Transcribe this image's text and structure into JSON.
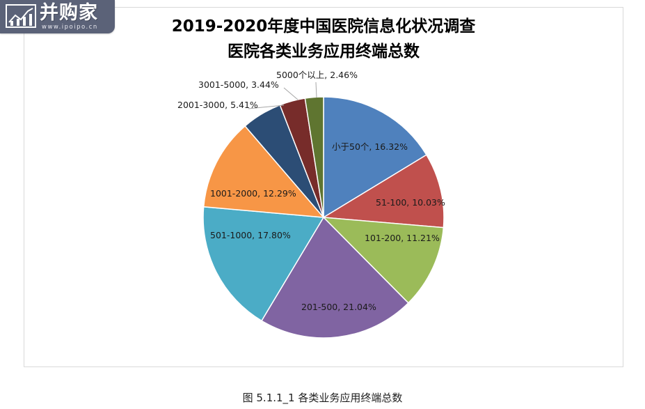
{
  "logo": {
    "text": "并购家",
    "url": "www.ipoipo.cn",
    "icon": "bar-line-chart-icon"
  },
  "chart": {
    "title_line1": "2019-2020年度中国医院信息化状况调查",
    "title_line2": "医院各类业务应用终端总数"
  },
  "caption": "图 5.1.1_1    各类业务应用终端总数",
  "chart_data": {
    "type": "pie",
    "title": "2019-2020年度中国医院信息化状况调查 医院各类业务应用终端总数",
    "legend": "none",
    "categories": [
      "小于50个",
      "51-100",
      "101-200",
      "201-500",
      "501-1000",
      "1001-2000",
      "2001-3000",
      "3001-5000",
      "5000个以上"
    ],
    "values": [
      16.32,
      10.03,
      11.21,
      21.04,
      17.8,
      12.29,
      5.41,
      3.44,
      2.46
    ],
    "labels": [
      "小于50个, 16.32%",
      "51-100, 10.03%",
      "101-200, 11.21%",
      "201-500, 21.04%",
      "501-1000, 17.80%",
      "1001-2000, 12.29%",
      "2001-3000, 5.41%",
      "3001-5000, 3.44%",
      "5000个以上, 2.46%"
    ],
    "colors": [
      "#4f81bd",
      "#c0504d",
      "#9bbb59",
      "#8064a2",
      "#4bacc6",
      "#f79646",
      "#2c4d75",
      "#772c2a",
      "#5f7530"
    ]
  }
}
